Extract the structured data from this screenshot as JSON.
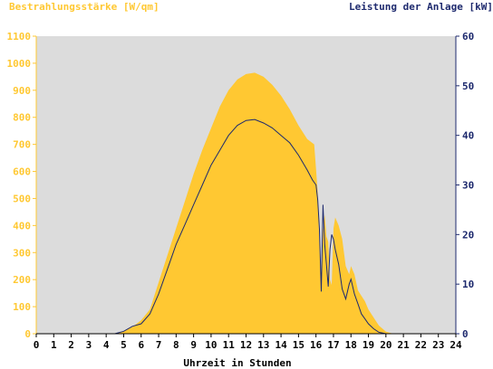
{
  "chart_data": {
    "type": "area",
    "left_axis_label": "Bestrahlungsstärke [W/qm]",
    "right_axis_label": "Leistung der Anlage [kW]",
    "xlabel": "Uhrzeit in Stunden",
    "x_ticks": [
      "0",
      "1",
      "2",
      "3",
      "4",
      "5",
      "6",
      "7",
      "8",
      "9",
      "10",
      "11",
      "12",
      "13",
      "14",
      "15",
      "16",
      "17",
      "18",
      "19",
      "20",
      "21",
      "22",
      "23",
      "24"
    ],
    "y_left_ticks": [
      "0",
      "100",
      "200",
      "300",
      "400",
      "500",
      "600",
      "700",
      "800",
      "900",
      "1000",
      "1100"
    ],
    "y_right_ticks": [
      "0",
      "10",
      "20",
      "30",
      "40",
      "50",
      "60"
    ],
    "xlim": [
      0,
      24
    ],
    "ylim_left": [
      0,
      1100
    ],
    "ylim_right": [
      0,
      60
    ],
    "grid": false,
    "colors": {
      "background_plot": "#dcdcdc",
      "irradiance_fill": "#ffc832",
      "power_line": "#1e2a6e",
      "left_axis": "#ffc832",
      "right_axis": "#1e2a6e"
    },
    "series": [
      {
        "name": "Bestrahlungsstärke [W/qm]",
        "axis": "left",
        "style": "area",
        "x": [
          0,
          4.5,
          5,
          5.5,
          6,
          6.5,
          7,
          7.5,
          8,
          8.5,
          9,
          9.5,
          10,
          10.5,
          11,
          11.5,
          12,
          12.5,
          13,
          13.5,
          14,
          14.5,
          15,
          15.5,
          15.9,
          16,
          16.1,
          16.2,
          16.3,
          16.4,
          16.5,
          16.6,
          16.7,
          16.8,
          16.9,
          17,
          17.1,
          17.3,
          17.5,
          17.7,
          17.9,
          18,
          18.2,
          18.4,
          18.6,
          18.8,
          19,
          19.3,
          19.6,
          20,
          20.3,
          20.6,
          21,
          22,
          23,
          24
        ],
        "y": [
          0,
          0,
          10,
          25,
          50,
          90,
          190,
          290,
          390,
          490,
          590,
          680,
          760,
          840,
          900,
          940,
          960,
          965,
          950,
          920,
          880,
          830,
          770,
          720,
          700,
          610,
          520,
          320,
          190,
          380,
          440,
          360,
          340,
          200,
          180,
          390,
          430,
          400,
          350,
          250,
          220,
          250,
          220,
          160,
          140,
          120,
          90,
          60,
          30,
          8,
          2,
          0,
          0,
          0,
          0,
          0
        ]
      },
      {
        "name": "Leistung der Anlage [kW]",
        "axis": "right",
        "style": "line",
        "x": [
          0,
          4.5,
          5,
          5.5,
          6,
          6.5,
          7,
          7.5,
          8,
          8.5,
          9,
          9.5,
          10,
          10.5,
          11,
          11.5,
          12,
          12.5,
          13,
          13.5,
          14,
          14.5,
          15,
          15.5,
          15.8,
          16,
          16.1,
          16.2,
          16.3,
          16.4,
          16.5,
          16.6,
          16.7,
          16.8,
          16.9,
          17,
          17.1,
          17.3,
          17.5,
          17.7,
          17.9,
          18,
          18.2,
          18.4,
          18.6,
          18.8,
          19,
          19.3,
          19.6,
          20,
          20.3,
          20.6,
          21,
          22,
          23,
          24
        ],
        "y": [
          0,
          0,
          0.5,
          1.5,
          2,
          4,
          8,
          13,
          18,
          22,
          26,
          30,
          34,
          37,
          40,
          42,
          43,
          43.2,
          42.5,
          41.5,
          40,
          38.5,
          36,
          33,
          31,
          30,
          27,
          21,
          8.5,
          26,
          18,
          14,
          9.5,
          17,
          20,
          19,
          17,
          14,
          9,
          7,
          10,
          11,
          8,
          6,
          4,
          3,
          2,
          1,
          0.3,
          0,
          0,
          0,
          0,
          0,
          0,
          0
        ]
      }
    ]
  }
}
